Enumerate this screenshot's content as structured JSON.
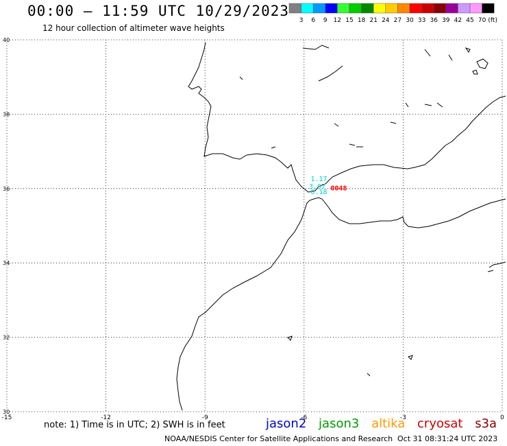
{
  "header": {
    "title": "00:00 – 11:59 UTC 10/29/2023",
    "subtitle": "12 hour collection of altimeter wave heights"
  },
  "colorbar": {
    "unit": "(ft)",
    "bins": [
      {
        "label": "3",
        "color": "#808080"
      },
      {
        "label": "6",
        "color": "#00ffff"
      },
      {
        "label": "9",
        "color": "#0099ff"
      },
      {
        "label": "12",
        "color": "#0000ff"
      },
      {
        "label": "15",
        "color": "#33ff33"
      },
      {
        "label": "18",
        "color": "#00cc00"
      },
      {
        "label": "21",
        "color": "#008800"
      },
      {
        "label": "24",
        "color": "#ffff00"
      },
      {
        "label": "27",
        "color": "#ffcc00"
      },
      {
        "label": "30",
        "color": "#ff8800"
      },
      {
        "label": "33",
        "color": "#ff0000"
      },
      {
        "label": "36",
        "color": "#cc0000"
      },
      {
        "label": "39",
        "color": "#880000"
      },
      {
        "label": "42",
        "color": "#990099"
      },
      {
        "label": "45",
        "color": "#cc99ff"
      },
      {
        "label": "70",
        "color": "#ff99ff"
      },
      {
        "label": "",
        "color": "#000000"
      }
    ]
  },
  "map": {
    "lon_range": [
      -15,
      0
    ],
    "lat_range": [
      30,
      40
    ],
    "lon_ticks": [
      "-15",
      "-12",
      "-9",
      "-6",
      "-3",
      "0"
    ],
    "lat_ticks": [
      "30",
      "32",
      "34",
      "36",
      "38",
      "40"
    ],
    "observations": [
      {
        "text": "1.17",
        "lon": -5.8,
        "lat": 36.2,
        "color": "#00cccc"
      },
      {
        "text": "3.07",
        "lon": -5.85,
        "lat": 36.0,
        "color": "#00cccc"
      },
      {
        "text": "0.18",
        "lon": -5.8,
        "lat": 35.85,
        "color": "#00cccc"
      },
      {
        "text": "0048",
        "lon": -5.2,
        "lat": 35.95,
        "color": "#ff0000"
      }
    ]
  },
  "footer": {
    "note": "note:  1) Time is in UTC;  2) SWH is in feet",
    "legend": [
      {
        "label": "jason2",
        "color": "#0000cc"
      },
      {
        "label": "jason3",
        "color": "#009900"
      },
      {
        "label": "altika",
        "color": "#ff9900"
      },
      {
        "label": "cryosat",
        "color": "#cc0000"
      },
      {
        "label": "s3a",
        "color": "#880000"
      }
    ],
    "credit": "NOAA/NESDIS Center for Satellite Applications and Research",
    "timestamp": "Oct 31 08:31:24 UTC 2023"
  }
}
